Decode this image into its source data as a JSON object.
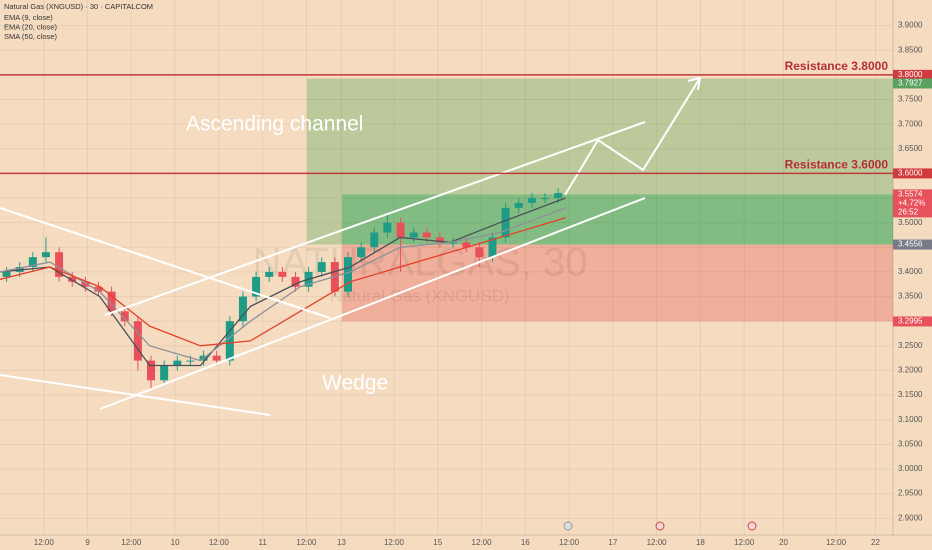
{
  "chart_data": {
    "type": "candlestick",
    "title": "Natural Gas (XNGUSD) · 30 · CAPITALCOM",
    "watermark": "NATURALGAS, 30",
    "watermark_subtitle": "Natural Gas (XNGUSD)",
    "annotations": [
      "Ascending channel",
      "Wedge"
    ],
    "up_color": "#1f9c86",
    "down_color": "#e8505b",
    "grid": true,
    "x": [
      0.075,
      0.225,
      0.375,
      0.525,
      0.675,
      0.825,
      0.975,
      1.125,
      1.275,
      1.425,
      1.575,
      1.725,
      1.875,
      2.025,
      2.175,
      2.325,
      2.475,
      2.625,
      2.775,
      2.925,
      3.075,
      3.225,
      3.375,
      3.525,
      3.675,
      3.825,
      3.975,
      4.125,
      4.275,
      4.425,
      4.575,
      4.725,
      4.875,
      5.025,
      5.175,
      5.325,
      5.475,
      5.625,
      5.775,
      5.925,
      6.075,
      6.225,
      6.375
    ],
    "open": [
      3.39,
      3.4,
      3.41,
      3.43,
      3.44,
      3.39,
      3.38,
      3.37,
      3.36,
      3.32,
      3.3,
      3.22,
      3.18,
      3.21,
      3.22,
      3.22,
      3.23,
      3.22,
      3.3,
      3.35,
      3.39,
      3.4,
      3.39,
      3.37,
      3.4,
      3.42,
      3.36,
      3.43,
      3.45,
      3.48,
      3.5,
      3.47,
      3.48,
      3.47,
      3.46,
      3.46,
      3.45,
      3.43,
      3.47,
      3.53,
      3.54,
      3.55,
      3.55
    ],
    "high": [
      3.41,
      3.42,
      3.44,
      3.47,
      3.45,
      3.4,
      3.39,
      3.38,
      3.37,
      3.33,
      3.31,
      3.23,
      3.22,
      3.23,
      3.23,
      3.24,
      3.24,
      3.31,
      3.36,
      3.4,
      3.41,
      3.41,
      3.4,
      3.41,
      3.43,
      3.43,
      3.44,
      3.46,
      3.49,
      3.52,
      3.51,
      3.49,
      3.49,
      3.48,
      3.47,
      3.47,
      3.46,
      3.48,
      3.54,
      3.55,
      3.56,
      3.56,
      3.57
    ],
    "low": [
      3.38,
      3.39,
      3.4,
      3.42,
      3.38,
      3.37,
      3.36,
      3.35,
      3.31,
      3.29,
      3.2,
      3.16,
      3.17,
      3.2,
      3.21,
      3.21,
      3.21,
      3.21,
      3.29,
      3.34,
      3.38,
      3.38,
      3.36,
      3.36,
      3.39,
      3.35,
      3.35,
      3.42,
      3.44,
      3.47,
      3.4,
      3.46,
      3.46,
      3.45,
      3.45,
      3.44,
      3.41,
      3.42,
      3.46,
      3.52,
      3.53,
      3.54,
      3.54
    ],
    "close": [
      3.4,
      3.41,
      3.43,
      3.44,
      3.39,
      3.38,
      3.37,
      3.36,
      3.32,
      3.3,
      3.22,
      3.18,
      3.21,
      3.22,
      3.22,
      3.23,
      3.22,
      3.3,
      3.35,
      3.39,
      3.4,
      3.39,
      3.37,
      3.4,
      3.42,
      3.36,
      3.43,
      3.45,
      3.48,
      3.5,
      3.47,
      3.48,
      3.47,
      3.46,
      3.46,
      3.45,
      3.43,
      3.47,
      3.53,
      3.54,
      3.55,
      3.55,
      3.56
    ],
    "series": [
      {
        "name": "EMA (9, close)",
        "color": "#4a5058",
        "x": [
          0,
          0.57,
          1.14,
          1.71,
          2.29,
          2.86,
          3.43,
          4.0,
          4.57,
          5.14,
          5.71,
          6.46
        ],
        "values": [
          3.4,
          3.41,
          3.35,
          3.21,
          3.21,
          3.33,
          3.38,
          3.41,
          3.47,
          3.46,
          3.5,
          3.55
        ]
      },
      {
        "name": "EMA (20, close)",
        "color": "#8d9199",
        "x": [
          0,
          0.57,
          1.14,
          1.71,
          2.29,
          2.86,
          3.43,
          4.0,
          4.57,
          5.14,
          5.71,
          6.46
        ],
        "values": [
          3.4,
          3.42,
          3.36,
          3.25,
          3.22,
          3.3,
          3.37,
          3.4,
          3.45,
          3.46,
          3.48,
          3.53
        ]
      },
      {
        "name": "SMA (50, close)",
        "color": "#e5402a",
        "x": [
          0,
          0.57,
          1.14,
          1.71,
          2.29,
          2.86,
          3.43,
          4.0,
          4.57,
          5.14,
          5.71,
          6.46
        ],
        "values": [
          3.385,
          3.41,
          3.37,
          3.29,
          3.25,
          3.26,
          3.32,
          3.38,
          3.41,
          3.44,
          3.47,
          3.51
        ]
      }
    ],
    "resistance": [
      {
        "value": 3.8,
        "label": "Resistance 3.8000",
        "axis_label": "3.8000"
      },
      {
        "value": 3.6,
        "label": "Resistance 3.6000",
        "axis_label": "3.6000"
      }
    ],
    "price_labels": [
      {
        "value": 3.7927,
        "label": "3.7927",
        "color": "#5aa05e"
      },
      {
        "value": 3.5574,
        "label": "3.5574",
        "change": "+4.72%",
        "countdown": "26:52",
        "color": "#e8505b"
      },
      {
        "value": 3.4556,
        "label": "3.4556",
        "color": "#787b86"
      },
      {
        "value": 3.2995,
        "label": "3.2995",
        "color": "#e8505b"
      }
    ],
    "xlim": [
      0,
      10.2
    ],
    "xticks": [
      {
        "value": 0.5,
        "label": "12:00"
      },
      {
        "value": 1,
        "label": "9"
      },
      {
        "value": 1.5,
        "label": "12:00"
      },
      {
        "value": 2,
        "label": "10"
      },
      {
        "value": 2.5,
        "label": "12:00"
      },
      {
        "value": 3,
        "label": "11"
      },
      {
        "value": 3.5,
        "label": "12:00"
      },
      {
        "value": 3.9,
        "label": "13"
      },
      {
        "value": 4.5,
        "label": "12:00"
      },
      {
        "value": 5,
        "label": "15"
      },
      {
        "value": 5.5,
        "label": "12:00"
      },
      {
        "value": 6,
        "label": "16"
      },
      {
        "value": 6.5,
        "label": "12:00"
      },
      {
        "value": 7,
        "label": "17"
      },
      {
        "value": 7.5,
        "label": "12:00"
      },
      {
        "value": 8,
        "label": "18"
      },
      {
        "value": 8.5,
        "label": "12:00"
      },
      {
        "value": 8.95,
        "label": "20"
      },
      {
        "value": 9.55,
        "label": "12:00"
      },
      {
        "value": 10,
        "label": "22"
      }
    ],
    "ylim": [
      2.866,
      3.952
    ],
    "yticks": [
      {
        "value": 2.9,
        "label": "2.9000"
      },
      {
        "value": 2.95,
        "label": "2.9500"
      },
      {
        "value": 3,
        "label": "3.0000"
      },
      {
        "value": 3.05,
        "label": "3.0500"
      },
      {
        "value": 3.1,
        "label": "3.1000"
      },
      {
        "value": 3.15,
        "label": "3.1500"
      },
      {
        "value": 3.2,
        "label": "3.2000"
      },
      {
        "value": 3.25,
        "label": "3.2500"
      },
      {
        "value": 3.3,
        "label": "3.3000"
      },
      {
        "value": 3.35,
        "label": "3.3500"
      },
      {
        "value": 3.4,
        "label": "3.4000"
      },
      {
        "value": 3.45,
        "label": "3.4500"
      },
      {
        "value": 3.5,
        "label": "3.5000"
      },
      {
        "value": 3.55,
        "label": "3.5500"
      },
      {
        "value": 3.6,
        "label": "3.6000"
      },
      {
        "value": 3.65,
        "label": "3.6500"
      },
      {
        "value": 3.7,
        "label": "3.7000"
      },
      {
        "value": 3.75,
        "label": "3.7500"
      },
      {
        "value": 3.8,
        "label": "3.8000"
      },
      {
        "value": 3.85,
        "label": "3.8500"
      },
      {
        "value": 3.9,
        "label": "3.9000"
      }
    ]
  }
}
